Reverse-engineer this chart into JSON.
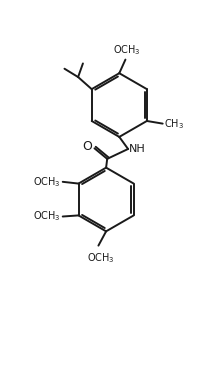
{
  "background": "#ffffff",
  "line_color": "#1a1a1a",
  "line_width": 1.4,
  "font_size": 7.5,
  "fig_width": 2.21,
  "fig_height": 3.88,
  "dpi": 100
}
